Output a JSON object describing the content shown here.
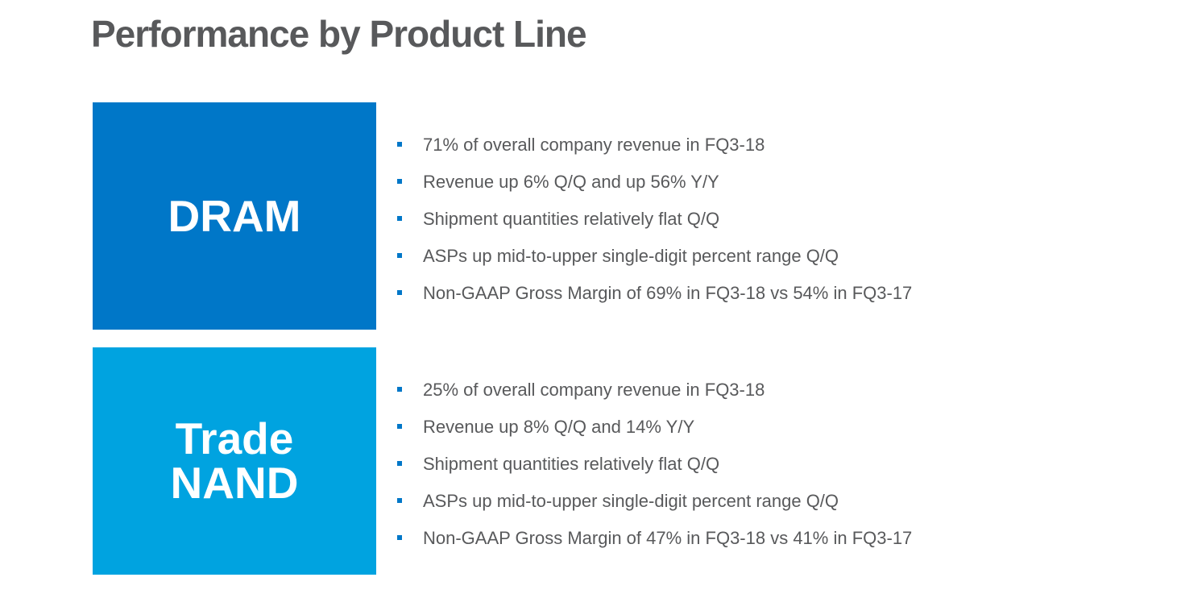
{
  "title": "Performance by Product Line",
  "colors": {
    "title_text": "#58595b",
    "body_text": "#58595b",
    "dram_box": "#0077c8",
    "nand_box": "#00a3e0",
    "bullet": "#0077c8"
  },
  "sections": [
    {
      "label_lines": [
        "DRAM"
      ],
      "bullets": [
        "71% of overall company revenue in FQ3-18",
        "Revenue up 6% Q/Q and up 56% Y/Y",
        "Shipment quantities relatively flat Q/Q",
        "ASPs up mid-to-upper single-digit percent range Q/Q",
        "Non-GAAP Gross Margin of 69% in FQ3-18 vs 54% in FQ3-17"
      ]
    },
    {
      "label_lines": [
        "Trade",
        "NAND"
      ],
      "bullets": [
        "25% of overall company revenue in FQ3-18",
        "Revenue up 8% Q/Q and 14% Y/Y",
        "Shipment quantities relatively flat Q/Q",
        "ASPs up mid-to-upper single-digit percent range Q/Q",
        "Non-GAAP Gross Margin of 47% in FQ3-18 vs 41% in FQ3-17"
      ]
    }
  ]
}
